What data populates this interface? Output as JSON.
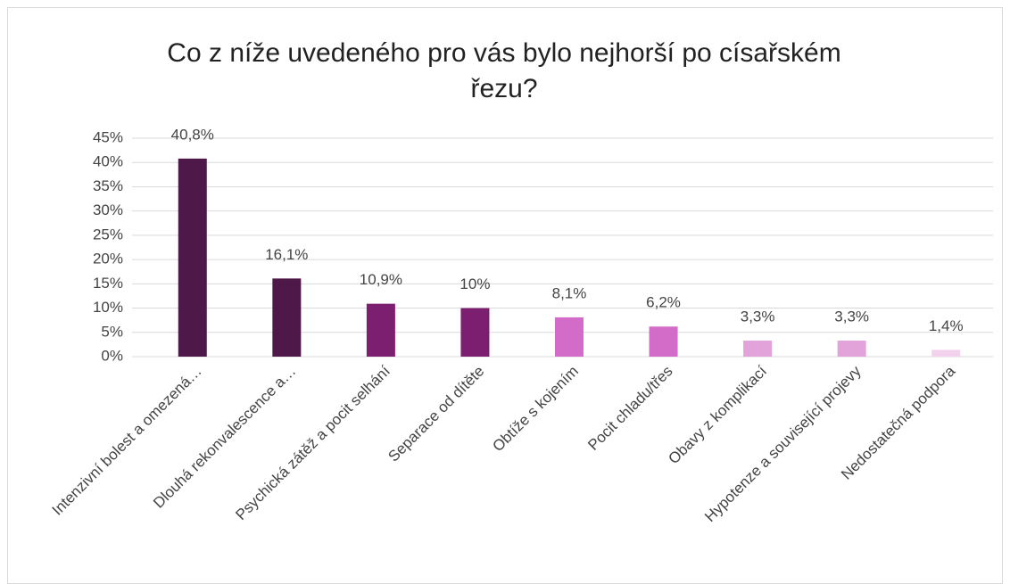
{
  "chart_data": {
    "type": "bar",
    "title": "Co z níže uvedeného pro vás bylo nejhorší po císařském řezu?",
    "categories": [
      "Intenzivní bolest a omezená…",
      "Dlouhá rekonvalescence a…",
      "Psychická zátěž a pocit selhání",
      "Separace od dítěte",
      "Obtíže s kojením",
      "Pocit chladu/třes",
      "Obavy z komplikací",
      "Hypotenze a související projevy",
      "Nedostatečná podpora"
    ],
    "values": [
      40.8,
      16.1,
      10.9,
      10,
      8.1,
      6.2,
      3.3,
      3.3,
      1.4
    ],
    "value_labels": [
      "40,8%",
      "16,1%",
      "10,9%",
      "10%",
      "8,1%",
      "6,2%",
      "3,3%",
      "3,3%",
      "1,4%"
    ],
    "colors": [
      "#4e1848",
      "#4e1848",
      "#7d1f70",
      "#7d1f70",
      "#d36bc8",
      "#d36bc8",
      "#e2a3da",
      "#e2a3da",
      "#f3d2ee"
    ],
    "ylim": [
      0,
      45
    ],
    "yticks": [
      {
        "value": 0,
        "label": "0%"
      },
      {
        "value": 5,
        "label": "5%"
      },
      {
        "value": 10,
        "label": "10%"
      },
      {
        "value": 15,
        "label": "15%"
      },
      {
        "value": 20,
        "label": "20%"
      },
      {
        "value": 25,
        "label": "25%"
      },
      {
        "value": 30,
        "label": "30%"
      },
      {
        "value": 35,
        "label": "35%"
      },
      {
        "value": 40,
        "label": "40%"
      },
      {
        "value": 45,
        "label": "45%"
      }
    ],
    "grid": true
  }
}
